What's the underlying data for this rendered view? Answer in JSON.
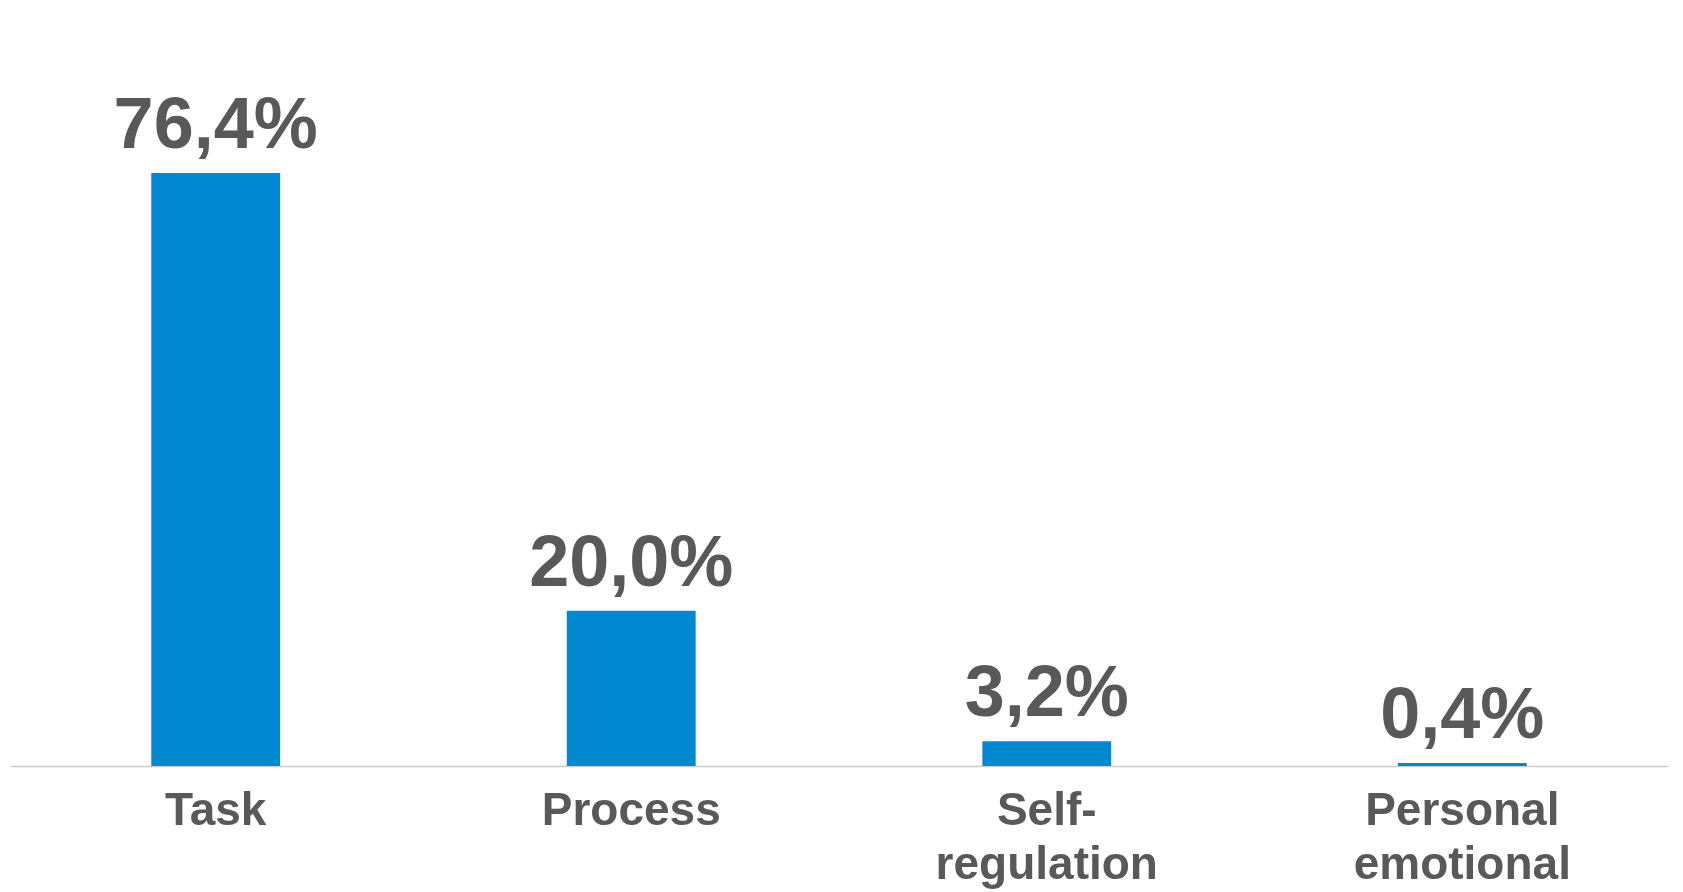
{
  "chart_data": {
    "type": "bar",
    "categories": [
      "Task",
      "Process",
      "Self-regulation",
      "Personal emotional"
    ],
    "values": [
      76.4,
      20.0,
      3.2,
      0.4
    ],
    "value_labels": [
      "76,4%",
      "20,0%",
      "3,2%",
      "0,4%"
    ],
    "color": "#0288d1",
    "grid": false
  }
}
